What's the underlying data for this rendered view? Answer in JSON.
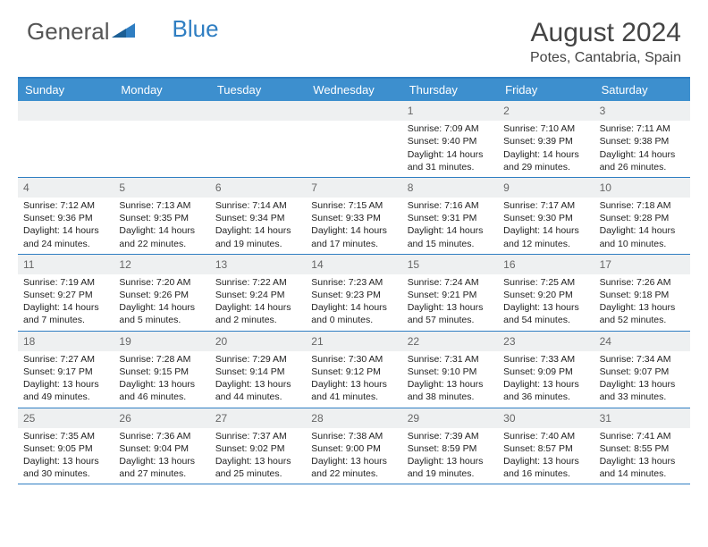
{
  "logo": {
    "text1": "General",
    "text2": "Blue"
  },
  "title": "August 2024",
  "location": "Potes, Cantabria, Spain",
  "colors": {
    "header_bar": "#3d8fce",
    "accent_line": "#2f7ec2",
    "daynum_bg": "#eef0f1",
    "text": "#222222",
    "background": "#ffffff"
  },
  "day_labels": [
    "Sunday",
    "Monday",
    "Tuesday",
    "Wednesday",
    "Thursday",
    "Friday",
    "Saturday"
  ],
  "weeks": [
    [
      null,
      null,
      null,
      null,
      {
        "n": "1",
        "sr": "7:09 AM",
        "ss": "9:40 PM",
        "dl": "14 hours and 31 minutes."
      },
      {
        "n": "2",
        "sr": "7:10 AM",
        "ss": "9:39 PM",
        "dl": "14 hours and 29 minutes."
      },
      {
        "n": "3",
        "sr": "7:11 AM",
        "ss": "9:38 PM",
        "dl": "14 hours and 26 minutes."
      }
    ],
    [
      {
        "n": "4",
        "sr": "7:12 AM",
        "ss": "9:36 PM",
        "dl": "14 hours and 24 minutes."
      },
      {
        "n": "5",
        "sr": "7:13 AM",
        "ss": "9:35 PM",
        "dl": "14 hours and 22 minutes."
      },
      {
        "n": "6",
        "sr": "7:14 AM",
        "ss": "9:34 PM",
        "dl": "14 hours and 19 minutes."
      },
      {
        "n": "7",
        "sr": "7:15 AM",
        "ss": "9:33 PM",
        "dl": "14 hours and 17 minutes."
      },
      {
        "n": "8",
        "sr": "7:16 AM",
        "ss": "9:31 PM",
        "dl": "14 hours and 15 minutes."
      },
      {
        "n": "9",
        "sr": "7:17 AM",
        "ss": "9:30 PM",
        "dl": "14 hours and 12 minutes."
      },
      {
        "n": "10",
        "sr": "7:18 AM",
        "ss": "9:28 PM",
        "dl": "14 hours and 10 minutes."
      }
    ],
    [
      {
        "n": "11",
        "sr": "7:19 AM",
        "ss": "9:27 PM",
        "dl": "14 hours and 7 minutes."
      },
      {
        "n": "12",
        "sr": "7:20 AM",
        "ss": "9:26 PM",
        "dl": "14 hours and 5 minutes."
      },
      {
        "n": "13",
        "sr": "7:22 AM",
        "ss": "9:24 PM",
        "dl": "14 hours and 2 minutes."
      },
      {
        "n": "14",
        "sr": "7:23 AM",
        "ss": "9:23 PM",
        "dl": "14 hours and 0 minutes."
      },
      {
        "n": "15",
        "sr": "7:24 AM",
        "ss": "9:21 PM",
        "dl": "13 hours and 57 minutes."
      },
      {
        "n": "16",
        "sr": "7:25 AM",
        "ss": "9:20 PM",
        "dl": "13 hours and 54 minutes."
      },
      {
        "n": "17",
        "sr": "7:26 AM",
        "ss": "9:18 PM",
        "dl": "13 hours and 52 minutes."
      }
    ],
    [
      {
        "n": "18",
        "sr": "7:27 AM",
        "ss": "9:17 PM",
        "dl": "13 hours and 49 minutes."
      },
      {
        "n": "19",
        "sr": "7:28 AM",
        "ss": "9:15 PM",
        "dl": "13 hours and 46 minutes."
      },
      {
        "n": "20",
        "sr": "7:29 AM",
        "ss": "9:14 PM",
        "dl": "13 hours and 44 minutes."
      },
      {
        "n": "21",
        "sr": "7:30 AM",
        "ss": "9:12 PM",
        "dl": "13 hours and 41 minutes."
      },
      {
        "n": "22",
        "sr": "7:31 AM",
        "ss": "9:10 PM",
        "dl": "13 hours and 38 minutes."
      },
      {
        "n": "23",
        "sr": "7:33 AM",
        "ss": "9:09 PM",
        "dl": "13 hours and 36 minutes."
      },
      {
        "n": "24",
        "sr": "7:34 AM",
        "ss": "9:07 PM",
        "dl": "13 hours and 33 minutes."
      }
    ],
    [
      {
        "n": "25",
        "sr": "7:35 AM",
        "ss": "9:05 PM",
        "dl": "13 hours and 30 minutes."
      },
      {
        "n": "26",
        "sr": "7:36 AM",
        "ss": "9:04 PM",
        "dl": "13 hours and 27 minutes."
      },
      {
        "n": "27",
        "sr": "7:37 AM",
        "ss": "9:02 PM",
        "dl": "13 hours and 25 minutes."
      },
      {
        "n": "28",
        "sr": "7:38 AM",
        "ss": "9:00 PM",
        "dl": "13 hours and 22 minutes."
      },
      {
        "n": "29",
        "sr": "7:39 AM",
        "ss": "8:59 PM",
        "dl": "13 hours and 19 minutes."
      },
      {
        "n": "30",
        "sr": "7:40 AM",
        "ss": "8:57 PM",
        "dl": "13 hours and 16 minutes."
      },
      {
        "n": "31",
        "sr": "7:41 AM",
        "ss": "8:55 PM",
        "dl": "13 hours and 14 minutes."
      }
    ]
  ],
  "labels": {
    "sunrise": "Sunrise:",
    "sunset": "Sunset:",
    "daylight": "Daylight:"
  }
}
